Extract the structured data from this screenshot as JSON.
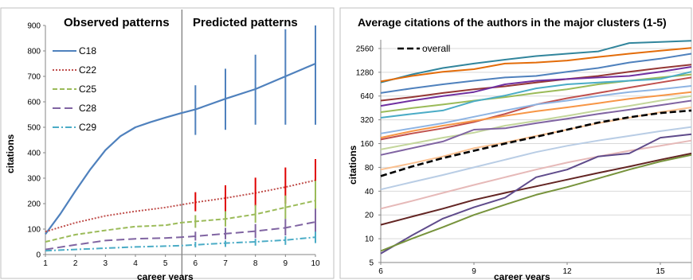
{
  "chart_data": [
    {
      "type": "line",
      "title_left": "Observed patterns",
      "title_right": "Predicted patterns",
      "xlabel": "career years",
      "ylabel": "citations",
      "x_ticks": [
        1,
        2,
        3,
        4,
        5,
        6,
        7,
        8,
        9,
        10
      ],
      "y_ticks": [
        0,
        100,
        200,
        300,
        400,
        500,
        600,
        700,
        800,
        900
      ],
      "xlim": [
        1,
        10
      ],
      "ylim": [
        0,
        900
      ],
      "divider_x": 5.55,
      "legend_position": "top-left",
      "series": [
        {
          "name": "C18",
          "color": "#4f81bd",
          "dash": "solid",
          "x": [
            1,
            1.5,
            2,
            2.5,
            3,
            3.5,
            4,
            4.5,
            5,
            5.5,
            6,
            7,
            8,
            9,
            10
          ],
          "y": [
            80,
            160,
            250,
            335,
            410,
            465,
            500,
            520,
            538,
            555,
            570,
            612,
            650,
            700,
            750
          ]
        },
        {
          "name": "C22",
          "color": "#c0504d",
          "dash": "dot",
          "x": [
            1,
            2,
            3,
            4,
            5,
            5.5,
            6,
            7,
            8,
            9,
            10
          ],
          "y": [
            90,
            125,
            152,
            170,
            185,
            195,
            205,
            222,
            242,
            265,
            292
          ]
        },
        {
          "name": "C25",
          "color": "#9bbb59",
          "dash": "dash",
          "x": [
            1,
            2,
            3,
            4,
            5,
            5.5,
            6,
            7,
            8,
            9,
            10
          ],
          "y": [
            50,
            78,
            95,
            110,
            115,
            125,
            130,
            140,
            158,
            185,
            212
          ]
        },
        {
          "name": "C28",
          "color": "#8064a2",
          "dash": "longdash",
          "x": [
            1,
            2,
            3,
            4,
            5,
            5.5,
            6,
            7,
            8,
            9,
            10
          ],
          "y": [
            20,
            38,
            55,
            62,
            65,
            68,
            72,
            82,
            92,
            105,
            128
          ]
        },
        {
          "name": "C29",
          "color": "#4bacc6",
          "dash": "dashdot",
          "x": [
            1,
            2,
            3,
            4,
            5,
            5.5,
            6,
            7,
            8,
            9,
            10
          ],
          "y": [
            15,
            20,
            25,
            30,
            33,
            35,
            38,
            45,
            50,
            57,
            68
          ]
        }
      ],
      "error_bars": [
        {
          "series": "C18",
          "color": "#4f81bd",
          "points": [
            {
              "x": 6,
              "low": 470,
              "high": 665
            },
            {
              "x": 7,
              "low": 490,
              "high": 730
            },
            {
              "x": 8,
              "low": 510,
              "high": 785
            },
            {
              "x": 9,
              "low": 510,
              "high": 885
            },
            {
              "x": 10,
              "low": 510,
              "high": 900
            }
          ]
        },
        {
          "series": "C22",
          "color": "#e00000",
          "points": [
            {
              "x": 6,
              "low": 170,
              "high": 245
            },
            {
              "x": 7,
              "low": 170,
              "high": 272
            },
            {
              "x": 8,
              "low": 190,
              "high": 302
            },
            {
              "x": 9,
              "low": 200,
              "high": 342
            },
            {
              "x": 10,
              "low": 210,
              "high": 375
            }
          ]
        },
        {
          "series": "C25",
          "color": "#9bbb59",
          "points": [
            {
              "x": 6,
              "low": 105,
              "high": 155
            },
            {
              "x": 7,
              "low": 110,
              "high": 170
            },
            {
              "x": 8,
              "low": 125,
              "high": 195
            },
            {
              "x": 9,
              "low": 140,
              "high": 232
            },
            {
              "x": 10,
              "low": 160,
              "high": 290
            }
          ]
        },
        {
          "series": "C28",
          "color": "#8064a2",
          "points": [
            {
              "x": 6,
              "low": 55,
              "high": 90
            },
            {
              "x": 7,
              "low": 60,
              "high": 105
            },
            {
              "x": 8,
              "low": 65,
              "high": 120
            },
            {
              "x": 9,
              "low": 75,
              "high": 140
            },
            {
              "x": 10,
              "low": 85,
              "high": 180
            }
          ]
        },
        {
          "series": "C29",
          "color": "#4bacc6",
          "points": [
            {
              "x": 6,
              "low": 28,
              "high": 50
            },
            {
              "x": 7,
              "low": 30,
              "high": 55
            },
            {
              "x": 8,
              "low": 35,
              "high": 62
            },
            {
              "x": 9,
              "low": 38,
              "high": 72
            },
            {
              "x": 10,
              "low": 45,
              "high": 90
            }
          ]
        }
      ]
    },
    {
      "type": "line",
      "title": "Average citations of the authors in the major clusters (1-5)",
      "xlabel": "career years",
      "ylabel": "citations",
      "y_scale": "log2",
      "x_ticks": [
        6,
        9,
        12,
        15
      ],
      "y_ticks": [
        5,
        10,
        20,
        40,
        80,
        160,
        320,
        640,
        1280,
        2560
      ],
      "xlim": [
        6,
        16
      ],
      "ylim": [
        5,
        3300
      ],
      "legend_position": "top-left",
      "x": [
        6,
        7,
        8,
        9,
        10,
        11,
        12,
        13,
        14,
        15,
        16
      ],
      "series": [
        {
          "name": "overall",
          "color": "#000000",
          "highlight": true,
          "values": [
            62,
            82,
            105,
            130,
            160,
            195,
            240,
            295,
            345,
            390,
            420
          ]
        },
        {
          "color": "#31859c",
          "values": [
            950,
            1200,
            1450,
            1650,
            1850,
            2050,
            2200,
            2350,
            3000,
            3100,
            3200
          ]
        },
        {
          "color": "#e36c09",
          "values": [
            980,
            1150,
            1300,
            1400,
            1650,
            1700,
            1800,
            2000,
            2200,
            2400,
            2600
          ]
        },
        {
          "color": "#4f81bd",
          "values": [
            700,
            800,
            900,
            1000,
            1100,
            1150,
            1300,
            1450,
            1700,
            1900,
            2200
          ]
        },
        {
          "color": "#953735",
          "values": [
            560,
            620,
            700,
            780,
            850,
            950,
            1050,
            1150,
            1300,
            1450,
            1600
          ]
        },
        {
          "color": "#7030a0",
          "values": [
            480,
            560,
            640,
            720,
            900,
            1000,
            1050,
            1100,
            1150,
            1300,
            1500
          ]
        },
        {
          "color": "#9bbb59",
          "values": [
            400,
            450,
            500,
            560,
            620,
            700,
            780,
            900,
            1000,
            1100,
            1200
          ]
        },
        {
          "color": "#4bacc6",
          "values": [
            340,
            380,
            420,
            550,
            650,
            800,
            900,
            950,
            1000,
            1050,
            1300
          ]
        },
        {
          "color": "#c0504d",
          "values": [
            180,
            215,
            250,
            300,
            380,
            500,
            600,
            700,
            820,
            950,
            1100
          ]
        },
        {
          "color": "#8eb4e3",
          "values": [
            215,
            250,
            290,
            350,
            420,
            500,
            560,
            640,
            720,
            780,
            860
          ]
        },
        {
          "color": "#f79646",
          "values": [
            190,
            230,
            270,
            310,
            360,
            410,
            460,
            520,
            590,
            650,
            720
          ]
        },
        {
          "color": "#c3d69b",
          "values": [
            135,
            160,
            190,
            220,
            270,
            310,
            360,
            420,
            480,
            560,
            640
          ]
        },
        {
          "color": "#8064a2",
          "values": [
            115,
            140,
            170,
            240,
            250,
            290,
            330,
            380,
            430,
            490,
            560
          ]
        },
        {
          "color": "#fac090",
          "values": [
            75,
            90,
            110,
            140,
            165,
            200,
            240,
            290,
            340,
            400,
            460
          ]
        },
        {
          "color": "#b9cde5",
          "values": [
            42,
            52,
            64,
            80,
            100,
            125,
            150,
            175,
            200,
            230,
            260
          ]
        },
        {
          "color": "#e6b9b8",
          "values": [
            24,
            30,
            38,
            48,
            60,
            75,
            92,
            110,
            130,
            150,
            175
          ]
        },
        {
          "color": "#632523",
          "values": [
            15,
            19,
            24,
            31,
            38,
            46,
            56,
            68,
            82,
            100,
            120
          ]
        },
        {
          "color": "#5f4b8b",
          "values": [
            6.5,
            11,
            18,
            25,
            33,
            60,
            75,
            110,
            120,
            190,
            210
          ]
        },
        {
          "color": "#77933c",
          "values": [
            7,
            10,
            14,
            20,
            27,
            36,
            45,
            58,
            75,
            95,
            115
          ]
        }
      ]
    }
  ]
}
